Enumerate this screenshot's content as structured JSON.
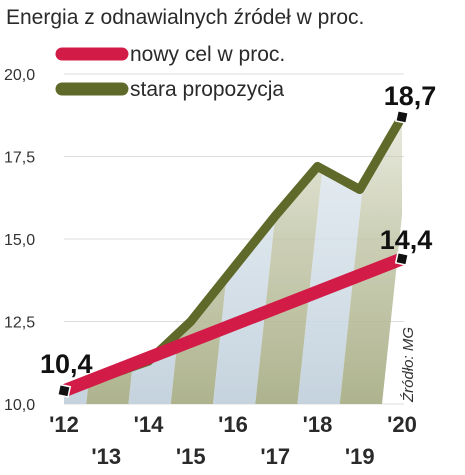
{
  "chart_data": {
    "type": "line",
    "title": "Energia z odnawialnych źródeł w proc.",
    "x": [
      2012,
      2013,
      2014,
      2015,
      2016,
      2017,
      2018,
      2019,
      2020
    ],
    "x_ticks_top": [
      "'12",
      "'14",
      "'16",
      "'18",
      "'20"
    ],
    "x_ticks_bottom": [
      "'13",
      "'15",
      "'17",
      "'19"
    ],
    "y_ticks": [
      "10,0",
      "12,5",
      "15,0",
      "17,5",
      "20,0"
    ],
    "ylim": [
      10,
      20
    ],
    "series": [
      {
        "name": "nowy cel w proc.",
        "color": "#d21b47",
        "x": [
          2012,
          2020
        ],
        "values": [
          10.4,
          14.4
        ],
        "start_label": "10,4",
        "end_label": "14,4"
      },
      {
        "name": "stara propozycja",
        "color": "#5f6a2a",
        "x": [
          2012,
          2014,
          2015,
          2016,
          2017,
          2018,
          2019,
          2020
        ],
        "values": [
          10.4,
          11.3,
          12.5,
          14.1,
          15.7,
          17.2,
          16.5,
          18.7
        ],
        "end_label": "18,7"
      }
    ],
    "source": "Źródło: MG",
    "legend_position": "top-left"
  }
}
